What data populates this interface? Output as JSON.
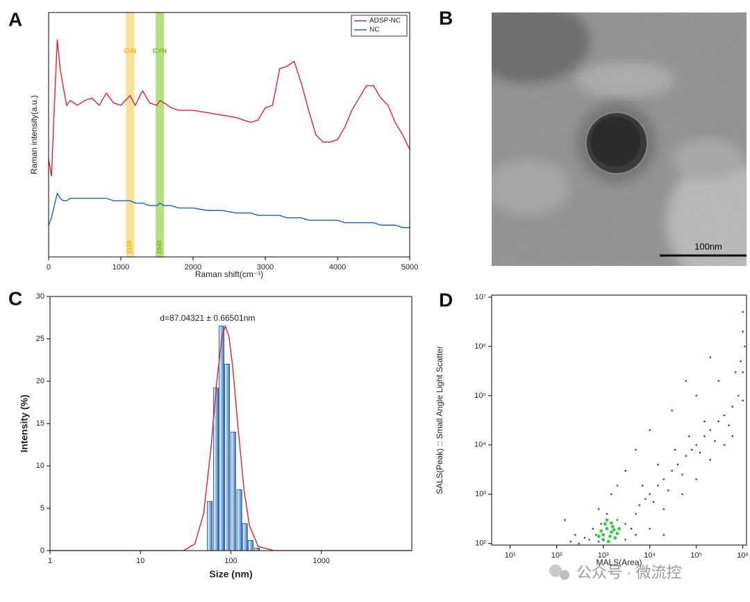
{
  "panels": [
    "A",
    "B",
    "C",
    "D"
  ],
  "image": {
    "scale_bar": "100nm"
  },
  "watermark": "公众号 · 微流控",
  "chart_data": [
    {
      "type": "line",
      "x": [
        0,
        40,
        80,
        120,
        160,
        200,
        250,
        300,
        400,
        500,
        600,
        700,
        800,
        900,
        1000,
        1128,
        1200,
        1300,
        1400,
        1500,
        1540,
        1600,
        1700,
        1800,
        2000,
        2200,
        2400,
        2600,
        2800,
        2900,
        3000,
        3100,
        3200,
        3300,
        3400,
        3500,
        3600,
        3700,
        3800,
        3900,
        4000,
        4100,
        4200,
        4300,
        4400,
        4500,
        4600,
        4700,
        4800,
        4900,
        5000
      ],
      "series": [
        {
          "name": "ADSP-NC",
          "color": "#e8202a",
          "values": [
            40,
            33,
            62,
            89,
            77,
            70,
            62,
            64,
            62,
            64,
            65,
            62,
            67,
            63,
            62,
            66,
            62,
            68,
            63,
            62,
            64,
            63,
            61,
            60,
            60,
            59,
            58,
            57,
            55,
            56,
            61,
            62,
            77,
            78,
            80,
            71,
            60,
            50,
            47,
            47,
            48,
            53,
            60,
            65,
            70,
            70,
            65,
            62,
            55,
            50,
            44
          ]
        },
        {
          "name": "NC",
          "color": "#1f5fbf",
          "values": [
            13,
            16,
            21,
            26,
            24,
            23,
            23,
            24,
            24,
            24,
            24,
            24,
            24,
            23,
            23,
            23,
            22,
            22,
            21,
            21,
            22,
            21,
            21,
            20,
            20,
            19,
            19,
            18,
            18,
            17,
            17,
            17,
            17,
            16,
            16,
            16,
            15,
            15,
            15,
            15,
            15,
            14,
            14,
            14,
            14,
            14,
            13,
            13,
            13,
            12,
            12
          ]
        }
      ],
      "bands": [
        {
          "label": "C-N",
          "x": 1128,
          "color": "#f7d774",
          "label_color": "#f0b400"
        },
        {
          "label": "C=N",
          "x": 1540,
          "color": "#9bd65a",
          "label_color": "#72b81a"
        }
      ],
      "xlim": [
        0,
        5000
      ],
      "xticks": [
        0,
        1000,
        2000,
        3000,
        4000,
        5000
      ],
      "ylim": [
        0,
        100
      ],
      "x_label": "Raman shift(cm⁻¹)",
      "y_label": "Raman intensity(a.u.)",
      "legend": "upper right"
    },
    {
      "type": "bar",
      "x": [
        58.2,
        68.2,
        78.6,
        90.6,
        106,
        124,
        143,
        165,
        194
      ],
      "values": [
        5.8,
        19.2,
        26.5,
        22,
        14,
        7.2,
        3.2,
        1.2,
        0.3
      ],
      "color": "#2a7fd4",
      "fit": {
        "color": "#e0202a",
        "x": [
          1,
          10,
          30,
          40,
          50,
          60,
          70,
          80,
          87,
          95,
          105,
          120,
          140,
          160,
          200,
          300,
          1000,
          10000
        ],
        "values": [
          0,
          0,
          0,
          0.8,
          4.4,
          11.9,
          20.1,
          25.4,
          26.5,
          25.3,
          21.6,
          14.5,
          7.1,
          3,
          0.5,
          0,
          0,
          0
        ]
      },
      "annotation": "d=87.04321 ± 0.66501nm",
      "log_x": true,
      "xlim": [
        1,
        10000
      ],
      "xticks": [
        1,
        10,
        100,
        1000
      ],
      "ylim": [
        0,
        30
      ],
      "yticks": [
        0,
        5,
        10,
        15,
        20,
        25,
        30
      ],
      "x_label": "Size (nm)",
      "y_label": "Intensity (%)"
    },
    {
      "type": "scatter",
      "series": [
        {
          "color": "#1a3fd6",
          "x": [
            300,
            500,
            700,
            800,
            600,
            900,
            400,
            1200,
            2000,
            3000,
            4000,
            5000,
            6000,
            8000,
            10000,
            12000,
            15000,
            20000,
            25000,
            30000,
            40000,
            50000,
            60000,
            80000,
            100000,
            120000,
            150000,
            200000,
            250000,
            300000,
            400000,
            500000,
            600000,
            800000,
            1000000,
            1000000,
            1000000,
            1000000,
            1100000,
            900000,
            700000,
            300000,
            100000,
            30000,
            10000,
            5000,
            3000,
            2000,
            1500,
            800,
            20000,
            50000,
            100000,
            200000,
            400000,
            600000,
            5000,
            10000,
            20000,
            3000,
            150,
            200,
            250,
            60000,
            200000,
            150000,
            70000,
            35000,
            15000,
            7000
          ],
          "values": [
            100,
            120,
            150,
            110,
            200,
            250,
            130,
            400,
            300,
            250,
            200,
            400,
            600,
            800,
            1000,
            700,
            1500,
            2000,
            1200,
            3000,
            4000,
            2500,
            6000,
            8000,
            10000,
            7000,
            15000,
            20000,
            12000,
            30000,
            40000,
            25000,
            60000,
            100000,
            80000,
            300000,
            2000000,
            5000000,
            1000000,
            500000,
            300000,
            200000,
            100000,
            50000,
            20000,
            8000,
            3000,
            1500,
            1000,
            500,
            500,
            1000,
            2000,
            5000,
            10000,
            15000,
            150,
            200,
            150,
            120,
            300,
            110,
            150,
            200000,
            600000,
            30000,
            15000,
            8000,
            4000,
            1500
          ]
        },
        {
          "color": "#2ecc40",
          "x": [
            1000,
            1200,
            1500,
            1800,
            1300,
            900,
            1100,
            1600,
            2000,
            1400,
            1000,
            1700,
            1200,
            800,
            2200,
            1500
          ],
          "values": [
            150,
            200,
            170,
            130,
            110,
            180,
            250,
            220,
            160,
            140,
            120,
            190,
            300,
            140,
            200,
            260
          ]
        }
      ],
      "log_x": true,
      "log_y": true,
      "xlim": [
        4,
        1200000
      ],
      "xticks": [
        {
          "value": 10,
          "label": "10¹"
        },
        {
          "value": 100,
          "label": "10²"
        },
        {
          "value": 1000,
          "label": "10³"
        },
        {
          "value": 10000,
          "label": "10⁴"
        },
        {
          "value": 100000,
          "label": "10⁵"
        },
        {
          "value": 1000000,
          "label": "10⁶"
        }
      ],
      "ylim": [
        93,
        11000000
      ],
      "yticks": [
        {
          "value": 100,
          "label": "10²"
        },
        {
          "value": 1000,
          "label": "10³"
        },
        {
          "value": 10000,
          "label": "10⁴"
        },
        {
          "value": 100000,
          "label": "10⁵"
        },
        {
          "value": 1000000,
          "label": "10⁶"
        },
        {
          "value": 10000000,
          "label": "10⁷"
        }
      ],
      "x_label": "MALS(Area)",
      "y_label": "SALS(Peak) :: Small Angle Light Scatter"
    }
  ]
}
